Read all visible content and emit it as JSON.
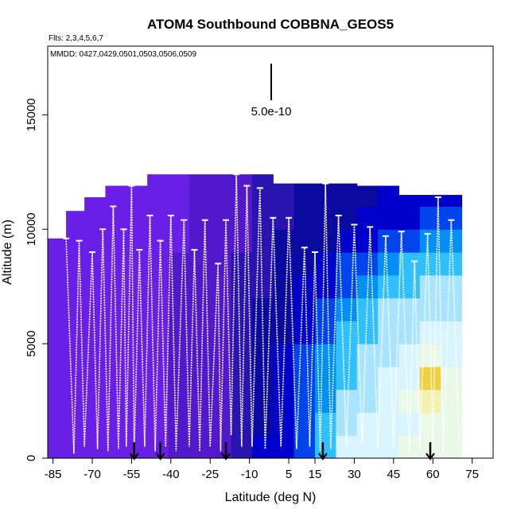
{
  "chart_data": {
    "type": "heatmap",
    "title": "ATOM4 Southbound COBBNA_GEOS5",
    "subtitle": "Flts: 2,3,4,5,6,7",
    "dates_label": "MMDD: 0427,0429,0501,0503,0506,0509",
    "scale_label": "5.0e-10",
    "xlabel": "Latitude (deg N)",
    "ylabel": "Altitude (m)",
    "xlim": [
      -87,
      83
    ],
    "ylim": [
      0,
      18000
    ],
    "x_ticks": [
      -85,
      -70,
      -55,
      -40,
      -25,
      -10,
      5,
      15,
      30,
      45,
      60,
      75
    ],
    "x_tick_labels": [
      "-85",
      "-70",
      "-55",
      "-40",
      "-25",
      "-10",
      "5",
      "15",
      "30",
      "45",
      "60",
      "75"
    ],
    "y_ticks": [
      0,
      5000,
      10000,
      15000
    ],
    "y_tick_labels": [
      "0",
      "5000",
      "10000",
      "15000"
    ],
    "flight_boundaries": [
      -54,
      -44,
      -19,
      18,
      59
    ],
    "profile_turns": [
      [
        -80,
        9600
      ],
      [
        -77,
        200
      ],
      [
        -75,
        9500
      ],
      [
        -73,
        500
      ],
      [
        -70,
        9000
      ],
      [
        -68,
        400
      ],
      [
        -66,
        10000
      ],
      [
        -64,
        300
      ],
      [
        -62,
        11000
      ],
      [
        -60,
        400
      ],
      [
        -58,
        10000
      ],
      [
        -57,
        500
      ],
      [
        -55,
        11900
      ],
      [
        -54,
        300
      ],
      [
        -52,
        9100
      ],
      [
        -50,
        500
      ],
      [
        -48,
        10600
      ],
      [
        -46,
        300
      ],
      [
        -44,
        9500
      ],
      [
        -42,
        500
      ],
      [
        -40,
        10600
      ],
      [
        -38,
        300
      ],
      [
        -35,
        10400
      ],
      [
        -33,
        500
      ],
      [
        -31,
        9100
      ],
      [
        -29,
        300
      ],
      [
        -27,
        10400
      ],
      [
        -25,
        500
      ],
      [
        -22,
        8500
      ],
      [
        -21,
        300
      ],
      [
        -19,
        10400
      ],
      [
        -17,
        1000
      ],
      [
        -15,
        12400
      ],
      [
        -13,
        500
      ],
      [
        -11,
        11900
      ],
      [
        -9,
        500
      ],
      [
        -6,
        11800
      ],
      [
        -4,
        400
      ],
      [
        -1,
        10500
      ],
      [
        2,
        500
      ],
      [
        5,
        10500
      ],
      [
        8,
        400
      ],
      [
        11,
        9200
      ],
      [
        13,
        500
      ],
      [
        15,
        9000
      ],
      [
        17,
        300
      ],
      [
        19,
        12000
      ],
      [
        21,
        400
      ],
      [
        24,
        10600
      ],
      [
        27,
        500
      ],
      [
        30,
        10200
      ],
      [
        33,
        600
      ],
      [
        36,
        10100
      ],
      [
        39,
        400
      ],
      [
        42,
        9700
      ],
      [
        45,
        500
      ],
      [
        48,
        9900
      ],
      [
        51,
        300
      ],
      [
        53,
        8600
      ],
      [
        55,
        400
      ],
      [
        58,
        9800
      ],
      [
        60,
        500
      ],
      [
        62,
        11400
      ],
      [
        64,
        300
      ],
      [
        67,
        10400
      ],
      [
        70,
        600
      ]
    ],
    "field": {
      "lat_bins": [
        -87,
        -80,
        -73,
        -65,
        -57,
        -49,
        -41,
        -33,
        -25,
        -17,
        -9,
        -1,
        7,
        15,
        23,
        31,
        39,
        47,
        55,
        63,
        71
      ],
      "alt_bins_m": [
        0,
        1000,
        2000,
        3000,
        4000,
        5000,
        6000,
        7000,
        8000,
        9000,
        10000,
        11000,
        12000,
        12500
      ],
      "color_scale": [
        "#6a1fe6",
        "#5218cc",
        "#2a14b0",
        "#0a0aa0",
        "#0000cc",
        "#0044ee",
        "#0090f5",
        "#30c0ff",
        "#a8e4ff",
        "#d8f4ff",
        "#eaf8e8",
        "#f4f0b0",
        "#f0d040"
      ],
      "values_index": [
        [
          0,
          0,
          0,
          0,
          0,
          0,
          1,
          1,
          1,
          2,
          4,
          4,
          5,
          7,
          9,
          9,
          9,
          10,
          10,
          10
        ],
        [
          0,
          0,
          0,
          0,
          0,
          0,
          1,
          1,
          1,
          2,
          3,
          4,
          5,
          7,
          8,
          9,
          9,
          9,
          10,
          10
        ],
        [
          0,
          0,
          0,
          0,
          0,
          0,
          1,
          1,
          1,
          2,
          3,
          4,
          5,
          6,
          8,
          8,
          9,
          10,
          11,
          10
        ],
        [
          0,
          0,
          0,
          0,
          0,
          0,
          1,
          1,
          1,
          2,
          3,
          4,
          5,
          6,
          7,
          8,
          9,
          9,
          12,
          10
        ],
        [
          0,
          0,
          0,
          0,
          0,
          0,
          1,
          1,
          1,
          2,
          3,
          4,
          5,
          6,
          7,
          8,
          8,
          9,
          10,
          9
        ],
        [
          0,
          0,
          0,
          0,
          0,
          0,
          1,
          1,
          1,
          2,
          3,
          3,
          4,
          5,
          7,
          7,
          8,
          8,
          9,
          9
        ],
        [
          0,
          0,
          0,
          0,
          0,
          0,
          1,
          1,
          1,
          2,
          3,
          3,
          4,
          5,
          6,
          7,
          8,
          8,
          8,
          8
        ],
        [
          0,
          0,
          0,
          0,
          0,
          0,
          1,
          1,
          1,
          2,
          2,
          3,
          4,
          4,
          5,
          6,
          7,
          7,
          8,
          8
        ],
        [
          0,
          0,
          0,
          0,
          0,
          0,
          1,
          1,
          1,
          2,
          2,
          3,
          3,
          4,
          5,
          5,
          6,
          7,
          7,
          7
        ],
        [
          0,
          0,
          0,
          0,
          0,
          0,
          0,
          1,
          1,
          1,
          2,
          3,
          3,
          3,
          4,
          4,
          5,
          5,
          6,
          6
        ],
        [
          0,
          0,
          0,
          0,
          0,
          0,
          0,
          1,
          1,
          1,
          2,
          2,
          3,
          3,
          3,
          4,
          4,
          4,
          5,
          5
        ],
        [
          0,
          0,
          0,
          0,
          0,
          0,
          0,
          1,
          1,
          1,
          2,
          2,
          3,
          3,
          3,
          3,
          4,
          4,
          4,
          4
        ],
        [
          0,
          0,
          0,
          0,
          0,
          0,
          0,
          1,
          1,
          1,
          2,
          2,
          3,
          3,
          3,
          3,
          3,
          4,
          4,
          4
        ]
      ],
      "column_top_m": [
        9600,
        10800,
        11400,
        11900,
        11900,
        12400,
        12400,
        12400,
        12400,
        12400,
        12400,
        12000,
        12000,
        12000,
        12000,
        11900,
        11900,
        11500,
        11500,
        11500
      ]
    }
  }
}
